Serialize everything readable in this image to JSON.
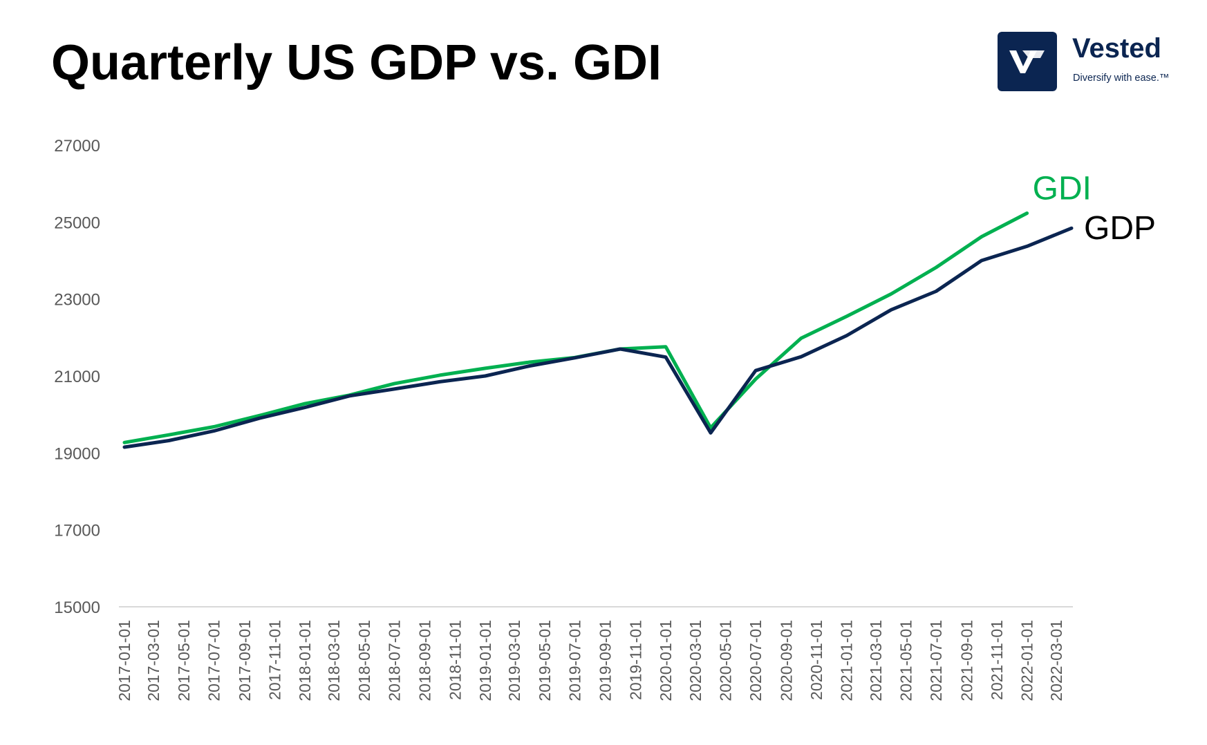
{
  "title": "Quarterly US GDP vs. GDI",
  "logo": {
    "name": "Vested",
    "tagline": "Diversify with ease.™",
    "icon": "v-logo-icon",
    "color": "#0b2551"
  },
  "chart_data": {
    "type": "line",
    "title": "Quarterly US GDP vs. GDI",
    "xlabel": "",
    "ylabel": "",
    "x_tick_labels": [
      "2017-01-01",
      "2017-03-01",
      "2017-05-01",
      "2017-07-01",
      "2017-09-01",
      "2017-11-01",
      "2018-01-01",
      "2018-03-01",
      "2018-05-01",
      "2018-07-01",
      "2018-09-01",
      "2018-11-01",
      "2019-01-01",
      "2019-03-01",
      "2019-05-01",
      "2019-07-01",
      "2019-09-01",
      "2019-11-01",
      "2020-01-01",
      "2020-03-01",
      "2020-05-01",
      "2020-07-01",
      "2020-09-01",
      "2020-11-01",
      "2021-01-01",
      "2021-03-01",
      "2021-05-01",
      "2021-07-01",
      "2021-09-01",
      "2021-11-01",
      "2022-01-01",
      "2022-03-01"
    ],
    "x": [
      "2017-01-01",
      "2017-04-01",
      "2017-07-01",
      "2017-10-01",
      "2018-01-01",
      "2018-04-01",
      "2018-07-01",
      "2018-10-01",
      "2019-01-01",
      "2019-04-01",
      "2019-07-01",
      "2019-10-01",
      "2020-01-01",
      "2020-04-01",
      "2020-07-01",
      "2020-10-01",
      "2021-01-01",
      "2021-04-01",
      "2021-07-01",
      "2021-10-01",
      "2022-01-01",
      "2022-04-01"
    ],
    "ylim": [
      15000,
      27000
    ],
    "y_ticks": [
      15000,
      17000,
      19000,
      21000,
      23000,
      25000,
      27000
    ],
    "grid": false,
    "legend": "inline-end-labels",
    "series": [
      {
        "name": "GDI",
        "color": "#00b050",
        "values": [
          19270,
          19470,
          19680,
          19970,
          20280,
          20500,
          20800,
          21020,
          21200,
          21360,
          21480,
          21700,
          21760,
          19650,
          20920,
          21980,
          22550,
          23130,
          23820,
          24620,
          25230,
          null
        ]
      },
      {
        "name": "GDP",
        "color": "#0b2551",
        "values": [
          19150,
          19320,
          19570,
          19900,
          20180,
          20480,
          20660,
          20850,
          21000,
          21260,
          21470,
          21700,
          21490,
          19520,
          21140,
          21500,
          22050,
          22720,
          23200,
          24000,
          24370,
          24840
        ]
      }
    ]
  }
}
